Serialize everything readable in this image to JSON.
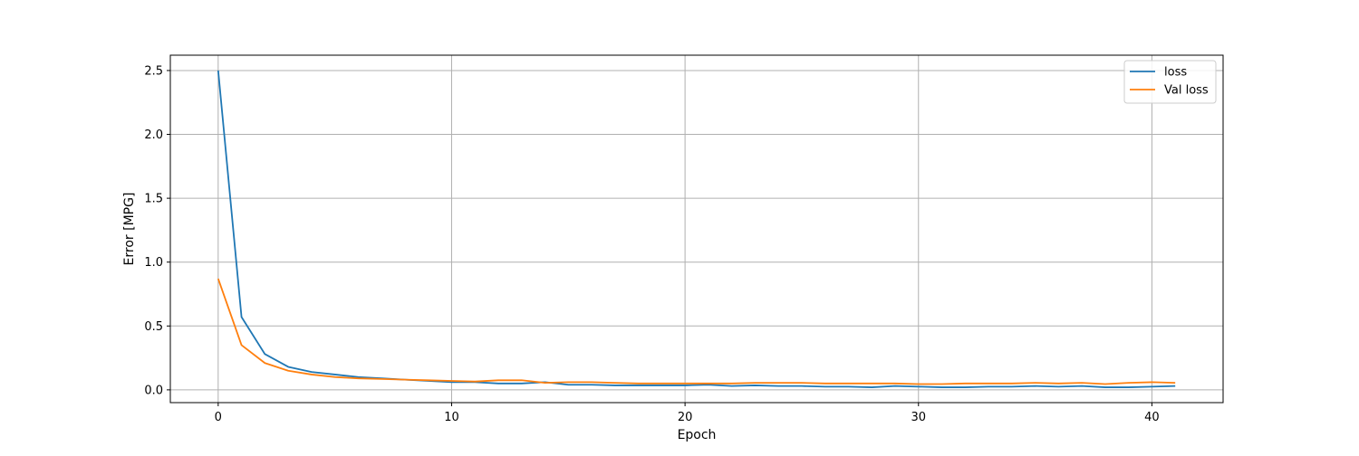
{
  "chart_data": {
    "type": "line",
    "title": "",
    "xlabel": "Epoch",
    "ylabel": "Error [MPG]",
    "xlim": [
      -2.05,
      43.05
    ],
    "ylim": [
      -0.1,
      2.62
    ],
    "xticks": [
      0,
      10,
      20,
      30,
      40
    ],
    "yticks": [
      0.0,
      0.5,
      1.0,
      1.5,
      2.0,
      2.5
    ],
    "ytick_labels": [
      "0.0",
      "0.5",
      "1.0",
      "1.5",
      "2.0",
      "2.5"
    ],
    "grid": true,
    "legend_position": "top-right",
    "x": [
      0,
      1,
      2,
      3,
      4,
      5,
      6,
      7,
      8,
      9,
      10,
      11,
      12,
      13,
      14,
      15,
      16,
      17,
      18,
      19,
      20,
      21,
      22,
      23,
      24,
      25,
      26,
      27,
      28,
      29,
      30,
      31,
      32,
      33,
      34,
      35,
      36,
      37,
      38,
      39,
      40,
      41
    ],
    "series": [
      {
        "name": "loss",
        "color": "#1f77b4",
        "values": [
          2.5,
          0.57,
          0.28,
          0.18,
          0.14,
          0.12,
          0.1,
          0.09,
          0.08,
          0.07,
          0.06,
          0.06,
          0.05,
          0.05,
          0.06,
          0.04,
          0.04,
          0.035,
          0.035,
          0.035,
          0.035,
          0.04,
          0.03,
          0.035,
          0.03,
          0.03,
          0.025,
          0.025,
          0.02,
          0.03,
          0.025,
          0.02,
          0.02,
          0.025,
          0.025,
          0.03,
          0.025,
          0.03,
          0.02,
          0.02,
          0.025,
          0.03
        ]
      },
      {
        "name": "Val loss",
        "color": "#ff7f0e",
        "values": [
          0.87,
          0.35,
          0.21,
          0.15,
          0.12,
          0.1,
          0.09,
          0.085,
          0.08,
          0.075,
          0.07,
          0.065,
          0.075,
          0.075,
          0.055,
          0.06,
          0.06,
          0.055,
          0.05,
          0.05,
          0.05,
          0.05,
          0.05,
          0.055,
          0.055,
          0.055,
          0.05,
          0.05,
          0.05,
          0.05,
          0.045,
          0.045,
          0.05,
          0.05,
          0.05,
          0.055,
          0.05,
          0.055,
          0.045,
          0.055,
          0.06,
          0.055
        ]
      }
    ]
  }
}
